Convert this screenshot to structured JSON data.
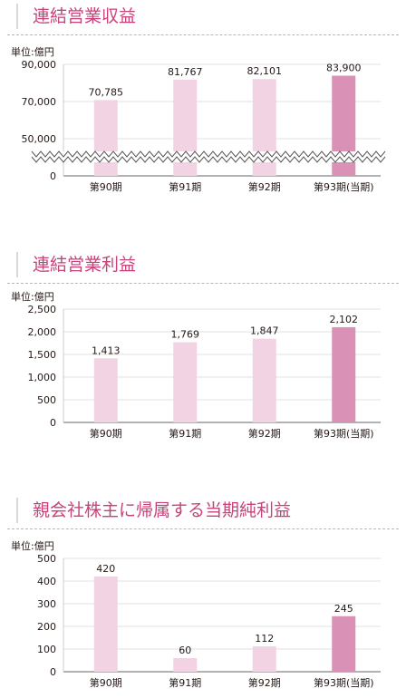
{
  "chart_data": [
    {
      "type": "bar",
      "title": "連結営業収益",
      "unit_label": "単位:億円",
      "categories": [
        "第90期",
        "第91期",
        "第92期",
        "第93期(当期)"
      ],
      "values": [
        70785,
        81767,
        82101,
        83900
      ],
      "value_labels": [
        "70,785",
        "81,767",
        "82,101",
        "83,900"
      ],
      "yticks": [
        0,
        50000,
        70000,
        90000
      ],
      "ytick_labels": [
        "0",
        "50,000",
        "70,000",
        "90,000"
      ],
      "axis_break": true,
      "ylim": [
        0,
        90000
      ],
      "grid": true,
      "highlight_index": 3
    },
    {
      "type": "bar",
      "title": "連結営業利益",
      "unit_label": "単位:億円",
      "categories": [
        "第90期",
        "第91期",
        "第92期",
        "第93期(当期)"
      ],
      "values": [
        1413,
        1769,
        1847,
        2102
      ],
      "value_labels": [
        "1,413",
        "1,769",
        "1,847",
        "2,102"
      ],
      "yticks": [
        0,
        500,
        1000,
        1500,
        2000,
        2500
      ],
      "ytick_labels": [
        "0",
        "500",
        "1,000",
        "1,500",
        "2,000",
        "2,500"
      ],
      "axis_break": false,
      "ylim": [
        0,
        2500
      ],
      "grid": true,
      "highlight_index": 3
    },
    {
      "type": "bar",
      "title": "親会社株主に帰属する当期純利益",
      "unit_label": "単位:億円",
      "categories": [
        "第90期",
        "第91期",
        "第92期",
        "第93期(当期)"
      ],
      "values": [
        420,
        60,
        112,
        245
      ],
      "value_labels": [
        "420",
        "60",
        "112",
        "245"
      ],
      "yticks": [
        0,
        100,
        200,
        300,
        400,
        500
      ],
      "ytick_labels": [
        "0",
        "100",
        "200",
        "300",
        "400",
        "500"
      ],
      "axis_break": false,
      "ylim": [
        0,
        500
      ],
      "grid": true,
      "highlight_index": 3
    }
  ],
  "colors": {
    "title": "#c8427a",
    "bar": "#f2d3e3",
    "bar_highlight": "#d991b6",
    "grid": "#e1e1e1",
    "axis": "#666666",
    "text": "#231815"
  }
}
